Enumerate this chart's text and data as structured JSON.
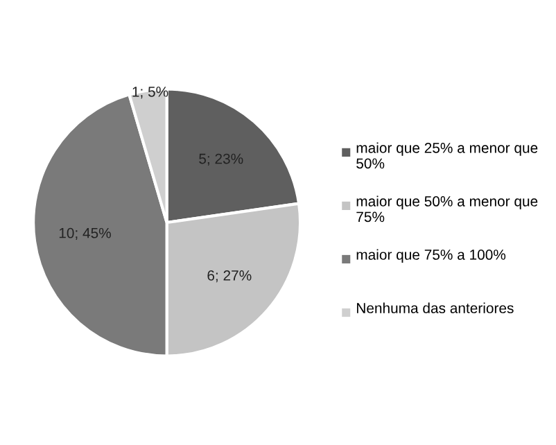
{
  "chart_data": {
    "type": "pie",
    "categories": [
      "maior que 25% a menor que 50%",
      "maior que 50% a menor que 75%",
      "maior que 75% a 100%",
      "Nenhuma das anteriores"
    ],
    "values": [
      5,
      6,
      10,
      1
    ],
    "value_labels": [
      "5; 23%",
      "6; 27%",
      "10; 45%",
      "1; 5%"
    ],
    "colors": [
      "#5f5f5f",
      "#c4c4c4",
      "#7a7a7a",
      "#cfcfcf"
    ],
    "legend": "right"
  }
}
